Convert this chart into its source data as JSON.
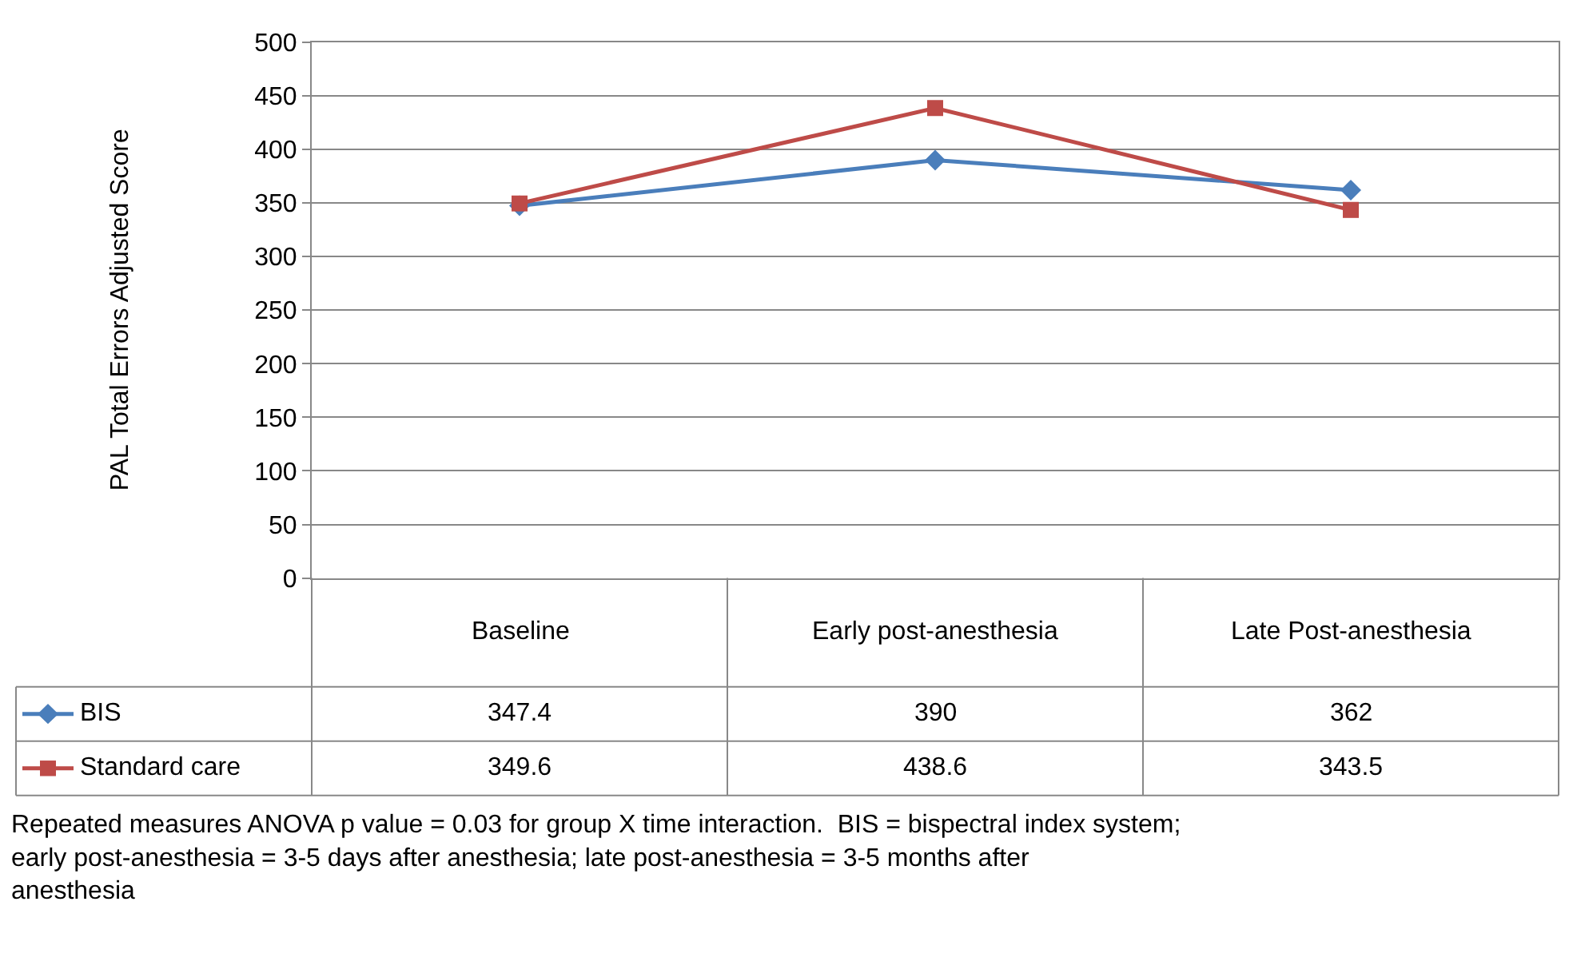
{
  "chart_data": {
    "type": "line",
    "ylabel": "PAL Total Errors Adjusted Score",
    "categories": [
      "Baseline",
      "Early post-anesthesia",
      "Late Post-anesthesia"
    ],
    "series": [
      {
        "name": "BIS",
        "color": "#4a7ebb",
        "marker": "diamond",
        "values": [
          347.4,
          390,
          362
        ]
      },
      {
        "name": "Standard care",
        "color": "#be4b48",
        "marker": "square",
        "values": [
          349.6,
          438.6,
          343.5
        ]
      }
    ],
    "ylim": [
      0,
      500
    ],
    "yticks": [
      0,
      50,
      100,
      150,
      200,
      250,
      300,
      350,
      400,
      450,
      500
    ],
    "grid": "y",
    "legend": "bottom",
    "data_labels": true,
    "line_style": "solid",
    "annotations": [
      "Repeated measures ANOVA p value = 0.03 for group X time interaction.  BIS = bispectral index system; early post-anesthesia = 3-5 days after anesthesia; late post-anesthesia = 3-5 months after anesthesia"
    ]
  }
}
